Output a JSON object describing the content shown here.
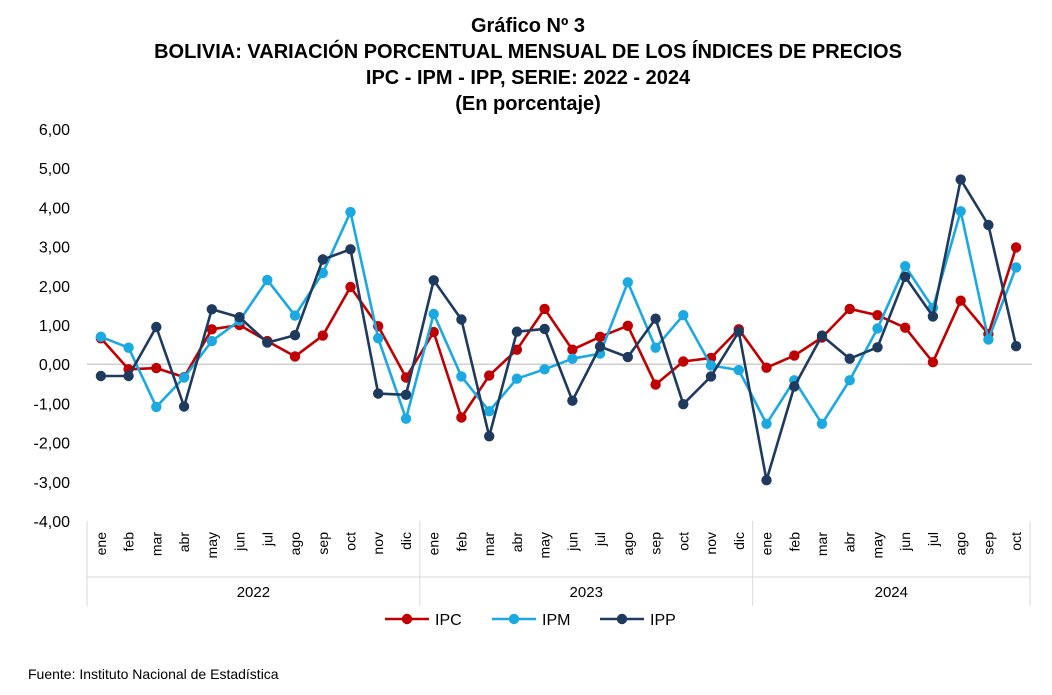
{
  "chart_data": {
    "type": "line",
    "title_lines": [
      "Gráfico Nº 3",
      "BOLIVIA: VARIACIÓN PORCENTUAL MENSUAL DE LOS ÍNDICES DE PRECIOS",
      "IPC - IPM - IPP, SERIE: 2022 - 2024",
      "(En porcentaje)"
    ],
    "xlabel": "",
    "ylabel": "",
    "ylim": [
      -4,
      6
    ],
    "yticks": [
      "6,00",
      "5,00",
      "4,00",
      "3,00",
      "2,00",
      "1,00",
      "0,00",
      "-1,00",
      "-2,00",
      "-3,00",
      "-4,00"
    ],
    "ytick_values": [
      6,
      5,
      4,
      3,
      2,
      1,
      0,
      -1,
      -2,
      -3,
      -4
    ],
    "categories": [
      "ene",
      "feb",
      "mar",
      "abr",
      "may",
      "jun",
      "jul",
      "ago",
      "sep",
      "oct",
      "nov",
      "dic",
      "ene",
      "feb",
      "mar",
      "abr",
      "may",
      "jun",
      "jul",
      "ago",
      "sep",
      "oct",
      "nov",
      "dic",
      "ene",
      "feb",
      "mar",
      "abr",
      "may",
      "jun",
      "jul",
      "ago",
      "sep",
      "oct"
    ],
    "groups": [
      {
        "label": "2022",
        "count": 12
      },
      {
        "label": "2023",
        "count": 12
      },
      {
        "label": "2024",
        "count": 10
      }
    ],
    "grid": false,
    "zero_line": true,
    "legend_position": "bottom",
    "series": [
      {
        "name": "IPC",
        "color": "#C00000",
        "values": [
          0.66,
          -0.13,
          -0.1,
          -0.33,
          0.89,
          1.0,
          0.59,
          0.2,
          0.73,
          1.97,
          0.97,
          -0.34,
          0.82,
          -1.36,
          -0.29,
          0.37,
          1.41,
          0.37,
          0.7,
          0.98,
          -0.52,
          0.07,
          0.16,
          0.89,
          -0.09,
          0.22,
          0.68,
          1.41,
          1.25,
          0.93,
          0.05,
          1.62,
          0.77,
          2.98
        ]
      },
      {
        "name": "IPM",
        "color": "#1BA9E1",
        "values": [
          0.7,
          0.42,
          -1.09,
          -0.34,
          0.59,
          1.11,
          2.15,
          1.24,
          2.33,
          3.88,
          0.66,
          -1.39,
          1.28,
          -0.31,
          -1.2,
          -0.37,
          -0.13,
          0.14,
          0.27,
          2.09,
          0.42,
          1.25,
          -0.03,
          -0.15,
          -1.52,
          -0.41,
          -1.52,
          -0.41,
          0.91,
          2.5,
          1.44,
          3.9,
          0.63,
          2.47
        ]
      },
      {
        "name": "IPP",
        "color": "#1F3A5F",
        "values": [
          -0.3,
          -0.3,
          0.95,
          -1.08,
          1.4,
          1.2,
          0.55,
          0.74,
          2.67,
          2.93,
          -0.75,
          -0.78,
          2.14,
          1.14,
          -1.84,
          0.83,
          0.9,
          -0.93,
          0.45,
          0.18,
          1.16,
          -1.02,
          -0.31,
          0.83,
          -2.96,
          -0.57,
          0.73,
          0.14,
          0.43,
          2.23,
          1.22,
          4.71,
          3.55,
          0.46
        ]
      }
    ]
  },
  "source_note": "Fuente: Instituto Nacional de Estadística"
}
